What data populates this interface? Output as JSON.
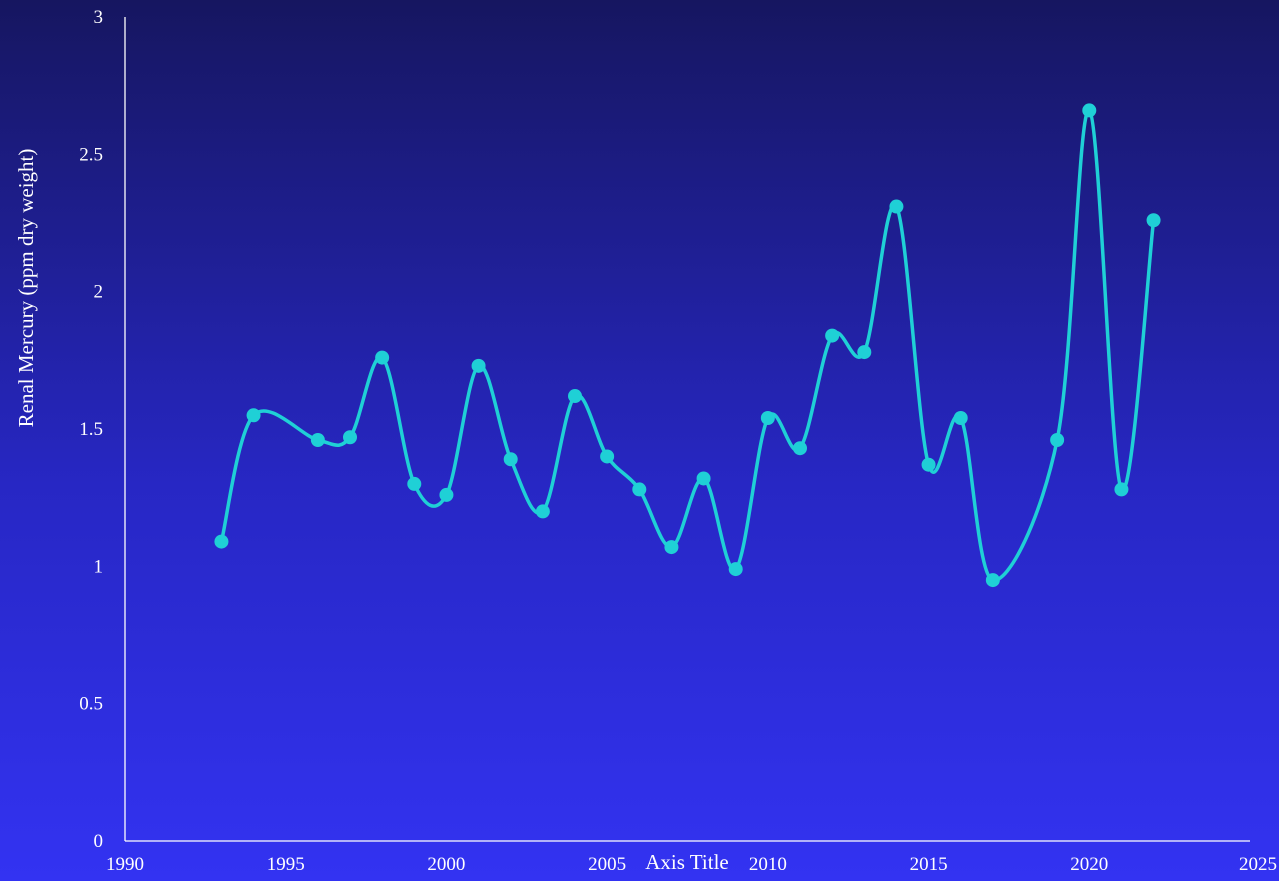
{
  "chart_data": {
    "type": "line",
    "smooth": true,
    "title": "",
    "xlabel": "Axis Title",
    "ylabel": "Renal Mercury (ppm dry weight)",
    "xlim": [
      1990,
      2025
    ],
    "ylim": [
      0,
      3
    ],
    "x_ticks": [
      "1990",
      "1995",
      "2000",
      "2005",
      "2010",
      "2015",
      "2020",
      "2025"
    ],
    "y_ticks": [
      "0",
      "0.5",
      "1",
      "1.5",
      "2",
      "2.5",
      "3"
    ],
    "grid": false,
    "legend": "none",
    "series": [
      {
        "color": "#1fd0d6",
        "x": [
          1993,
          1994,
          1996,
          1997,
          1998,
          1999,
          2000,
          2001,
          2002,
          2003,
          2004,
          2005,
          2006,
          2007,
          2008,
          2009,
          2010,
          2011,
          2012,
          2013,
          2014,
          2015,
          2016,
          2017,
          2019,
          2020,
          2021,
          2022
        ],
        "y": [
          1.09,
          1.55,
          1.46,
          1.47,
          1.76,
          1.3,
          1.26,
          1.73,
          1.39,
          1.2,
          1.62,
          1.4,
          1.28,
          1.07,
          1.32,
          0.99,
          1.54,
          1.43,
          1.84,
          1.78,
          2.31,
          1.37,
          1.54,
          0.95,
          1.46,
          2.66,
          1.28,
          2.26
        ]
      }
    ]
  },
  "colors": {
    "axis": "#ffffff",
    "line": "#1fd0d6",
    "marker": "#1fd0d6"
  }
}
